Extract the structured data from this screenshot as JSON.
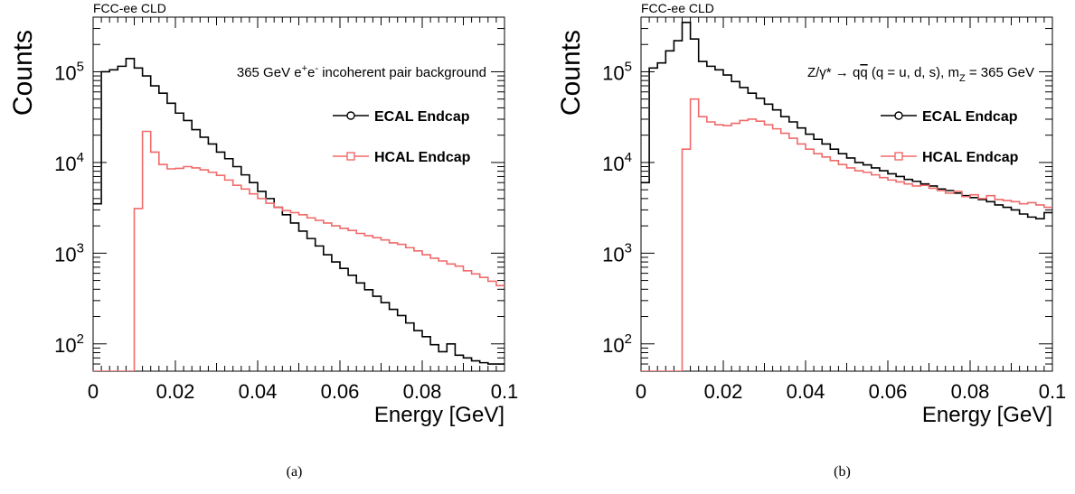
{
  "chart_data": [
    {
      "type": "histogram",
      "header": "FCC-ee CLD",
      "title_plain": "365 GeV e",
      "title_sup1": "+",
      "title_mid": "e",
      "title_sup2": "-",
      "title_rest": " incoherent pair background",
      "xlabel": "Energy [GeV]",
      "ylabel": "Counts",
      "xlim": [
        0,
        0.1
      ],
      "ylim": [
        50,
        400000
      ],
      "yscale": "log",
      "grid": false,
      "legend_position": "top-right",
      "x_ticks": [
        0,
        0.02,
        0.04,
        0.06,
        0.08,
        0.1
      ],
      "x_tick_labels": [
        "0",
        "0.02",
        "0.04",
        "0.06",
        "0.08",
        "0.1"
      ],
      "y_tick_exponents": [
        "2",
        "3",
        "4",
        "5"
      ],
      "y_tick_base": "10",
      "bin_width": 0.002,
      "caption": "(a)",
      "series": [
        {
          "name": "ECAL Endcap",
          "color": "#000000",
          "marker": "circle",
          "values": [
            3500,
            100000,
            105000,
            115000,
            140000,
            110000,
            90000,
            70000,
            58000,
            45000,
            35000,
            29000,
            23000,
            19000,
            16000,
            13000,
            11000,
            9000,
            7300,
            6000,
            4800,
            4000,
            3200,
            2650,
            2150,
            1750,
            1450,
            1200,
            960,
            800,
            680,
            570,
            470,
            395,
            335,
            285,
            240,
            205,
            170,
            140,
            120,
            98,
            82,
            100,
            75,
            70,
            65,
            62,
            60,
            60
          ]
        },
        {
          "name": "HCAL Endcap",
          "color": "#f06a6a",
          "marker": "square",
          "values": [
            50,
            50,
            50,
            50,
            50,
            3100,
            22000,
            13000,
            9500,
            8500,
            8600,
            9000,
            8700,
            8300,
            7800,
            7200,
            6400,
            5600,
            5100,
            4500,
            4000,
            3550,
            3200,
            2950,
            2800,
            2650,
            2450,
            2300,
            2150,
            2000,
            1880,
            1780,
            1650,
            1560,
            1480,
            1400,
            1300,
            1250,
            1150,
            1060,
            960,
            880,
            820,
            760,
            720,
            640,
            590,
            540,
            490,
            440
          ]
        }
      ]
    },
    {
      "type": "histogram",
      "header": "FCC-ee CLD",
      "title_plain": "Z/γ* → q",
      "title_qbar": "q",
      "title_mid": " (q = u, d, s), m",
      "title_sub": "Z",
      "title_rest": " = 365 GeV",
      "xlabel": "Energy [GeV]",
      "ylabel": "Counts",
      "xlim": [
        0,
        0.1
      ],
      "ylim": [
        50,
        400000
      ],
      "yscale": "log",
      "grid": false,
      "legend_position": "top-right",
      "x_ticks": [
        0,
        0.02,
        0.04,
        0.06,
        0.08,
        0.1
      ],
      "x_tick_labels": [
        "0",
        "0.02",
        "0.04",
        "0.06",
        "0.08",
        "0.1"
      ],
      "y_tick_exponents": [
        "2",
        "3",
        "4",
        "5"
      ],
      "y_tick_base": "10",
      "bin_width": 0.002,
      "caption": "(b)",
      "series": [
        {
          "name": "ECAL Endcap",
          "color": "#000000",
          "marker": "circle",
          "values": [
            6000,
            110000,
            125000,
            170000,
            220000,
            350000,
            230000,
            130000,
            115000,
            105000,
            92000,
            78000,
            67000,
            58000,
            51000,
            44000,
            38000,
            32000,
            28000,
            24000,
            20500,
            18000,
            16000,
            14000,
            12500,
            11200,
            10000,
            9400,
            8700,
            8100,
            7500,
            7000,
            6500,
            6200,
            5800,
            5500,
            5100,
            4900,
            4600,
            4300,
            4100,
            3900,
            3700,
            3400,
            3200,
            3000,
            2700,
            2500,
            2400,
            2800
          ]
        },
        {
          "name": "HCAL Endcap",
          "color": "#f06a6a",
          "marker": "square",
          "values": [
            50,
            50,
            50,
            50,
            50,
            14000,
            50000,
            32000,
            28000,
            26000,
            25500,
            27000,
            29000,
            30000,
            28500,
            26000,
            23500,
            21000,
            18500,
            16000,
            14000,
            12500,
            11500,
            10500,
            9500,
            8700,
            8100,
            7800,
            7300,
            6800,
            6400,
            6100,
            5800,
            5500,
            5600,
            5200,
            4900,
            4600,
            4800,
            4200,
            4400,
            4000,
            4300,
            3900,
            3800,
            3700,
            3500,
            3600,
            3400,
            3200
          ]
        }
      ]
    }
  ]
}
